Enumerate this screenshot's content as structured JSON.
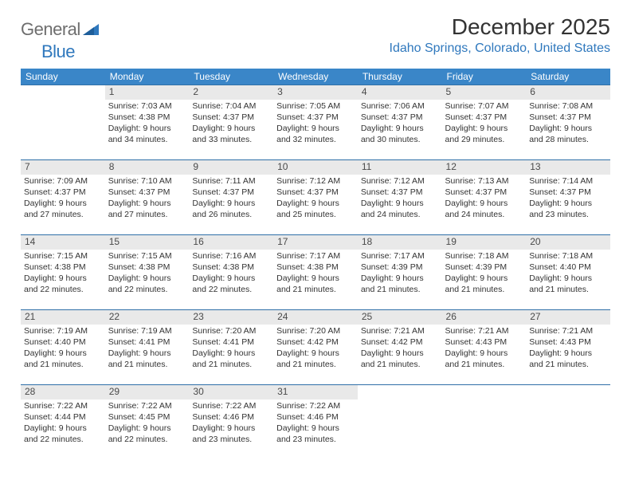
{
  "brand": {
    "left": "General",
    "right": "Blue"
  },
  "title": "December 2025",
  "location": "Idaho Springs, Colorado, United States",
  "colors": {
    "header_bg": "#3a86c8",
    "header_text": "#ffffff",
    "row_border": "#2f6fa8",
    "daynum_bg": "#e9e9e9",
    "text": "#333333",
    "brand_gray": "#6e6e6e",
    "brand_blue": "#2f78bd"
  },
  "day_headers": [
    "Sunday",
    "Monday",
    "Tuesday",
    "Wednesday",
    "Thursday",
    "Friday",
    "Saturday"
  ],
  "weeks": [
    [
      {
        "num": "",
        "sunrise": "",
        "sunset": "",
        "daylight": ""
      },
      {
        "num": "1",
        "sunrise": "Sunrise: 7:03 AM",
        "sunset": "Sunset: 4:38 PM",
        "daylight": "Daylight: 9 hours and 34 minutes."
      },
      {
        "num": "2",
        "sunrise": "Sunrise: 7:04 AM",
        "sunset": "Sunset: 4:37 PM",
        "daylight": "Daylight: 9 hours and 33 minutes."
      },
      {
        "num": "3",
        "sunrise": "Sunrise: 7:05 AM",
        "sunset": "Sunset: 4:37 PM",
        "daylight": "Daylight: 9 hours and 32 minutes."
      },
      {
        "num": "4",
        "sunrise": "Sunrise: 7:06 AM",
        "sunset": "Sunset: 4:37 PM",
        "daylight": "Daylight: 9 hours and 30 minutes."
      },
      {
        "num": "5",
        "sunrise": "Sunrise: 7:07 AM",
        "sunset": "Sunset: 4:37 PM",
        "daylight": "Daylight: 9 hours and 29 minutes."
      },
      {
        "num": "6",
        "sunrise": "Sunrise: 7:08 AM",
        "sunset": "Sunset: 4:37 PM",
        "daylight": "Daylight: 9 hours and 28 minutes."
      }
    ],
    [
      {
        "num": "7",
        "sunrise": "Sunrise: 7:09 AM",
        "sunset": "Sunset: 4:37 PM",
        "daylight": "Daylight: 9 hours and 27 minutes."
      },
      {
        "num": "8",
        "sunrise": "Sunrise: 7:10 AM",
        "sunset": "Sunset: 4:37 PM",
        "daylight": "Daylight: 9 hours and 27 minutes."
      },
      {
        "num": "9",
        "sunrise": "Sunrise: 7:11 AM",
        "sunset": "Sunset: 4:37 PM",
        "daylight": "Daylight: 9 hours and 26 minutes."
      },
      {
        "num": "10",
        "sunrise": "Sunrise: 7:12 AM",
        "sunset": "Sunset: 4:37 PM",
        "daylight": "Daylight: 9 hours and 25 minutes."
      },
      {
        "num": "11",
        "sunrise": "Sunrise: 7:12 AM",
        "sunset": "Sunset: 4:37 PM",
        "daylight": "Daylight: 9 hours and 24 minutes."
      },
      {
        "num": "12",
        "sunrise": "Sunrise: 7:13 AM",
        "sunset": "Sunset: 4:37 PM",
        "daylight": "Daylight: 9 hours and 24 minutes."
      },
      {
        "num": "13",
        "sunrise": "Sunrise: 7:14 AM",
        "sunset": "Sunset: 4:37 PM",
        "daylight": "Daylight: 9 hours and 23 minutes."
      }
    ],
    [
      {
        "num": "14",
        "sunrise": "Sunrise: 7:15 AM",
        "sunset": "Sunset: 4:38 PM",
        "daylight": "Daylight: 9 hours and 22 minutes."
      },
      {
        "num": "15",
        "sunrise": "Sunrise: 7:15 AM",
        "sunset": "Sunset: 4:38 PM",
        "daylight": "Daylight: 9 hours and 22 minutes."
      },
      {
        "num": "16",
        "sunrise": "Sunrise: 7:16 AM",
        "sunset": "Sunset: 4:38 PM",
        "daylight": "Daylight: 9 hours and 22 minutes."
      },
      {
        "num": "17",
        "sunrise": "Sunrise: 7:17 AM",
        "sunset": "Sunset: 4:38 PM",
        "daylight": "Daylight: 9 hours and 21 minutes."
      },
      {
        "num": "18",
        "sunrise": "Sunrise: 7:17 AM",
        "sunset": "Sunset: 4:39 PM",
        "daylight": "Daylight: 9 hours and 21 minutes."
      },
      {
        "num": "19",
        "sunrise": "Sunrise: 7:18 AM",
        "sunset": "Sunset: 4:39 PM",
        "daylight": "Daylight: 9 hours and 21 minutes."
      },
      {
        "num": "20",
        "sunrise": "Sunrise: 7:18 AM",
        "sunset": "Sunset: 4:40 PM",
        "daylight": "Daylight: 9 hours and 21 minutes."
      }
    ],
    [
      {
        "num": "21",
        "sunrise": "Sunrise: 7:19 AM",
        "sunset": "Sunset: 4:40 PM",
        "daylight": "Daylight: 9 hours and 21 minutes."
      },
      {
        "num": "22",
        "sunrise": "Sunrise: 7:19 AM",
        "sunset": "Sunset: 4:41 PM",
        "daylight": "Daylight: 9 hours and 21 minutes."
      },
      {
        "num": "23",
        "sunrise": "Sunrise: 7:20 AM",
        "sunset": "Sunset: 4:41 PM",
        "daylight": "Daylight: 9 hours and 21 minutes."
      },
      {
        "num": "24",
        "sunrise": "Sunrise: 7:20 AM",
        "sunset": "Sunset: 4:42 PM",
        "daylight": "Daylight: 9 hours and 21 minutes."
      },
      {
        "num": "25",
        "sunrise": "Sunrise: 7:21 AM",
        "sunset": "Sunset: 4:42 PM",
        "daylight": "Daylight: 9 hours and 21 minutes."
      },
      {
        "num": "26",
        "sunrise": "Sunrise: 7:21 AM",
        "sunset": "Sunset: 4:43 PM",
        "daylight": "Daylight: 9 hours and 21 minutes."
      },
      {
        "num": "27",
        "sunrise": "Sunrise: 7:21 AM",
        "sunset": "Sunset: 4:43 PM",
        "daylight": "Daylight: 9 hours and 21 minutes."
      }
    ],
    [
      {
        "num": "28",
        "sunrise": "Sunrise: 7:22 AM",
        "sunset": "Sunset: 4:44 PM",
        "daylight": "Daylight: 9 hours and 22 minutes."
      },
      {
        "num": "29",
        "sunrise": "Sunrise: 7:22 AM",
        "sunset": "Sunset: 4:45 PM",
        "daylight": "Daylight: 9 hours and 22 minutes."
      },
      {
        "num": "30",
        "sunrise": "Sunrise: 7:22 AM",
        "sunset": "Sunset: 4:46 PM",
        "daylight": "Daylight: 9 hours and 23 minutes."
      },
      {
        "num": "31",
        "sunrise": "Sunrise: 7:22 AM",
        "sunset": "Sunset: 4:46 PM",
        "daylight": "Daylight: 9 hours and 23 minutes."
      },
      {
        "num": "",
        "sunrise": "",
        "sunset": "",
        "daylight": ""
      },
      {
        "num": "",
        "sunrise": "",
        "sunset": "",
        "daylight": ""
      },
      {
        "num": "",
        "sunrise": "",
        "sunset": "",
        "daylight": ""
      }
    ]
  ]
}
